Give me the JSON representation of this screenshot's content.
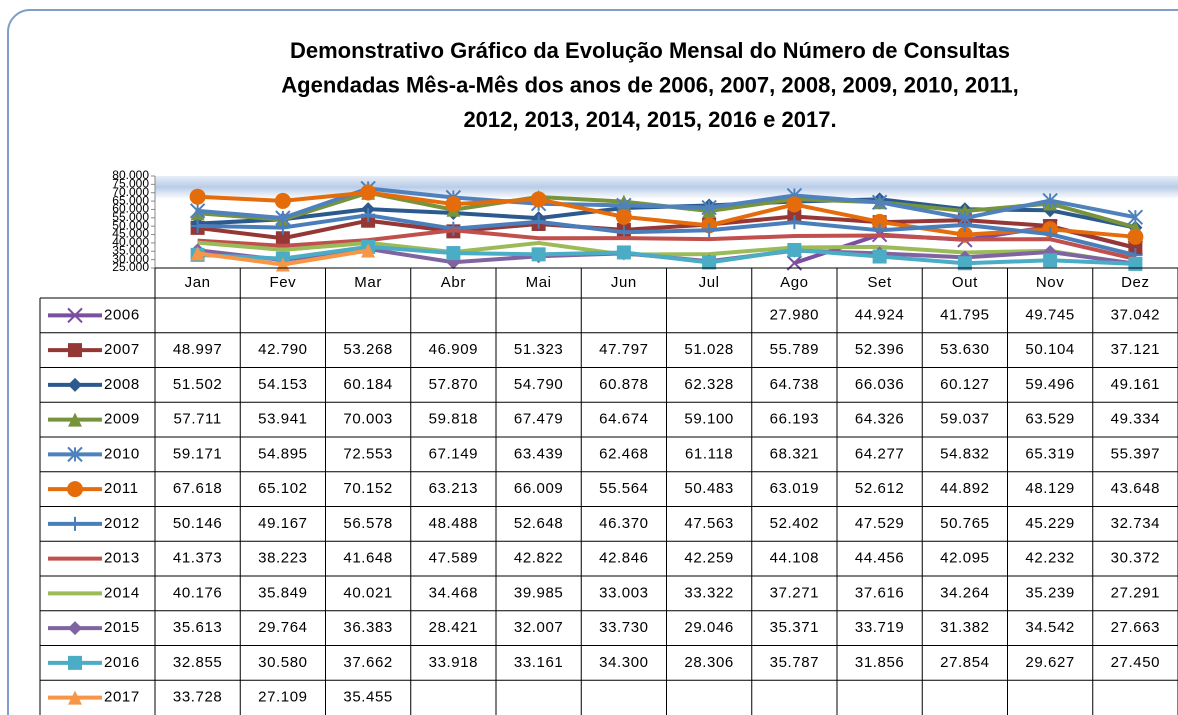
{
  "chart_data": {
    "type": "line",
    "title": [
      "Demonstrativo Gráfico da Evolução Mensal do Número de Consultas",
      "Agendadas Mês-a-Mês dos anos de 2006, 2007, 2008, 2009, 2010, 2011,",
      "2012, 2013, 2014, 2015, 2016 e 2017."
    ],
    "categories": [
      "Jan",
      "Fev",
      "Mar",
      "Abr",
      "Mai",
      "Jun",
      "Jul",
      "Ago",
      "Set",
      "Out",
      "Nov",
      "Dez"
    ],
    "ylim": [
      25000,
      80000
    ],
    "yticks": [
      {
        "value": 25000,
        "label": "25.000"
      },
      {
        "value": 30000,
        "label": "30.000"
      },
      {
        "value": 35000,
        "label": "35.000"
      },
      {
        "value": 40000,
        "label": "40.000"
      },
      {
        "value": 45000,
        "label": "45.000"
      },
      {
        "value": 50000,
        "label": "50.000"
      },
      {
        "value": 55000,
        "label": "55.000"
      },
      {
        "value": 60000,
        "label": "60.000"
      },
      {
        "value": 65000,
        "label": "65.000"
      },
      {
        "value": 70000,
        "label": "70.000"
      },
      {
        "value": 75000,
        "label": "75.000"
      },
      {
        "value": 80000,
        "label": "80.000"
      }
    ],
    "grid": false,
    "series": [
      {
        "name": "2006",
        "color": "#7b4fa0",
        "marker": "x",
        "values": [
          null,
          null,
          null,
          null,
          null,
          null,
          null,
          27980,
          44924,
          41795,
          49745,
          37042
        ],
        "value_labels": [
          null,
          null,
          null,
          null,
          null,
          null,
          null,
          "27.980",
          "44.924",
          "41.795",
          "49.745",
          "37.042"
        ]
      },
      {
        "name": "2007",
        "color": "#953735",
        "marker": "square",
        "values": [
          48997,
          42790,
          53268,
          46909,
          51323,
          47797,
          51028,
          55789,
          52396,
          53630,
          50104,
          37121
        ],
        "value_labels": [
          "48.997",
          "42.790",
          "53.268",
          "46.909",
          "51.323",
          "47.797",
          "51.028",
          "55.789",
          "52.396",
          "53.630",
          "50.104",
          "37.121"
        ]
      },
      {
        "name": "2008",
        "color": "#2c5a8f",
        "marker": "diamond",
        "values": [
          51502,
          54153,
          60184,
          57870,
          54790,
          60878,
          62328,
          64738,
          66036,
          60127,
          59496,
          49161
        ],
        "value_labels": [
          "51.502",
          "54.153",
          "60.184",
          "57.870",
          "54.790",
          "60.878",
          "62.328",
          "64.738",
          "66.036",
          "60.127",
          "59.496",
          "49.161"
        ]
      },
      {
        "name": "2009",
        "color": "#77933c",
        "marker": "triangle",
        "values": [
          57711,
          53941,
          70003,
          59818,
          67479,
          64674,
          59100,
          66193,
          64326,
          59037,
          63529,
          49334
        ],
        "value_labels": [
          "57.711",
          "53.941",
          "70.003",
          "59.818",
          "67.479",
          "64.674",
          "59.100",
          "66.193",
          "64.326",
          "59.037",
          "63.529",
          "49.334"
        ]
      },
      {
        "name": "2010",
        "color": "#4f81bd",
        "marker": "star",
        "values": [
          59171,
          54895,
          72553,
          67149,
          63439,
          62468,
          61118,
          68321,
          64277,
          54832,
          65319,
          55397
        ],
        "value_labels": [
          "59.171",
          "54.895",
          "72.553",
          "67.149",
          "63.439",
          "62.468",
          "61.118",
          "68.321",
          "64.277",
          "54.832",
          "65.319",
          "55.397"
        ]
      },
      {
        "name": "2011",
        "color": "#e46c0a",
        "marker": "circle",
        "values": [
          67618,
          65102,
          70152,
          63213,
          66009,
          55564,
          50483,
          63019,
          52612,
          44892,
          48129,
          43648
        ],
        "value_labels": [
          "67.618",
          "65.102",
          "70.152",
          "63.213",
          "66.009",
          "55.564",
          "50.483",
          "63.019",
          "52.612",
          "44.892",
          "48.129",
          "43.648"
        ]
      },
      {
        "name": "2012",
        "color": "#4a7ebb",
        "marker": "plus",
        "values": [
          50146,
          49167,
          56578,
          48488,
          52648,
          46370,
          47563,
          52402,
          47529,
          50765,
          45229,
          32734
        ],
        "value_labels": [
          "50.146",
          "49.167",
          "56.578",
          "48.488",
          "52.648",
          "46.370",
          "47.563",
          "52.402",
          "47.529",
          "50.765",
          "45.229",
          "32.734"
        ]
      },
      {
        "name": "2013",
        "color": "#c0504d",
        "marker": "none",
        "values": [
          41373,
          38223,
          41648,
          47589,
          42822,
          42846,
          42259,
          44108,
          44456,
          42095,
          42232,
          30372
        ],
        "value_labels": [
          "41.373",
          "38.223",
          "41.648",
          "47.589",
          "42.822",
          "42.846",
          "42.259",
          "44.108",
          "44.456",
          "42.095",
          "42.232",
          "30.372"
        ]
      },
      {
        "name": "2014",
        "color": "#9bbb59",
        "marker": "none",
        "values": [
          40176,
          35849,
          40021,
          34468,
          39985,
          33003,
          33322,
          37271,
          37616,
          34264,
          35239,
          27291
        ],
        "value_labels": [
          "40.176",
          "35.849",
          "40.021",
          "34.468",
          "39.985",
          "33.003",
          "33.322",
          "37.271",
          "37.616",
          "34.264",
          "35.239",
          "27.291"
        ]
      },
      {
        "name": "2015",
        "color": "#8064a2",
        "marker": "diamond",
        "values": [
          35613,
          29764,
          36383,
          28421,
          32007,
          33730,
          29046,
          35371,
          33719,
          31382,
          34542,
          27663
        ],
        "value_labels": [
          "35.613",
          "29.764",
          "36.383",
          "28.421",
          "32.007",
          "33.730",
          "29.046",
          "35.371",
          "33.719",
          "31.382",
          "34.542",
          "27.663"
        ]
      },
      {
        "name": "2016",
        "color": "#4bacc6",
        "marker": "square",
        "values": [
          32855,
          30580,
          37662,
          33918,
          33161,
          34300,
          28306,
          35787,
          31856,
          27854,
          29627,
          27450
        ],
        "value_labels": [
          "32.855",
          "30.580",
          "37.662",
          "33.918",
          "33.161",
          "34.300",
          "28.306",
          "35.787",
          "31.856",
          "27.854",
          "29.627",
          "27.450"
        ]
      },
      {
        "name": "2017",
        "color": "#f79646",
        "marker": "triangle",
        "values": [
          33728,
          27109,
          35455,
          null,
          null,
          null,
          null,
          null,
          null,
          null,
          null,
          null
        ],
        "value_labels": [
          "33.728",
          "27.109",
          "35.455",
          null,
          null,
          null,
          null,
          null,
          null,
          null,
          null,
          null
        ]
      }
    ]
  }
}
